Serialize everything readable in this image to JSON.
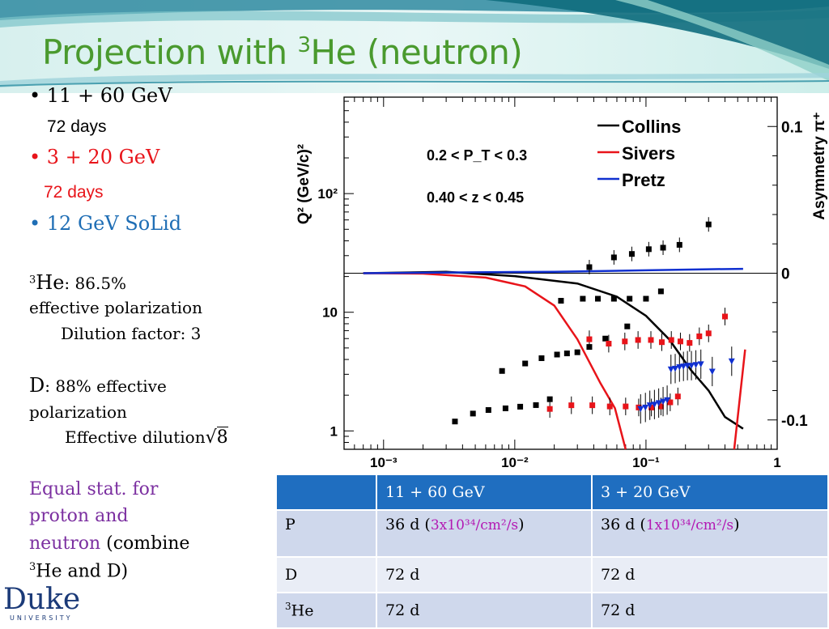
{
  "title": {
    "main": "Projection with ",
    "sup": "3",
    "rest": "He (neutron)"
  },
  "left": {
    "b1": "• 11 + 60 GeV",
    "b1_sub": "72 days",
    "b2": "• 3 + 20 GeV",
    "b2_sub": "72 days",
    "b3": "• 12 GeV SoLid",
    "he_sup": "3",
    "he_label": "He",
    "he_pct": ":   86.5%",
    "he_line2": "effective polarization",
    "he_line3": "Dilution factor: 3",
    "d_label": "D",
    "d_rest": ":   88% effective",
    "d_line2": "polarization",
    "d_line3": "Effective dilution",
    "d_sqrt": "8",
    "eq1": "Equal stat. for",
    "eq2": "proton and",
    "eq3a": "neutron",
    "eq3b": " (combine",
    "eq4_sup": "3",
    "eq4": "He and D)"
  },
  "table": {
    "headers": [
      "",
      "11 + 60 GeV",
      "3 + 20 GeV"
    ],
    "rows": [
      {
        "label": "P",
        "c1_a": "36 d (",
        "c1_lum": "3x10³⁴/cm²/s",
        "c1_b": ")",
        "c2_a": "36 d (",
        "c2_lum": "1x10³⁴/cm²/s",
        "c2_b": ")"
      },
      {
        "label": "D",
        "c1": "72 d",
        "c2": "72 d"
      },
      {
        "label_sup": "3",
        "label": "He",
        "c1": "72 d",
        "c2": "72 d"
      }
    ]
  },
  "logo": {
    "name": "Duke",
    "sub": "UNIVERSITY"
  },
  "chart_data": {
    "type": "scatter",
    "ylabel_left": "Q² (GeV/c)²",
    "ylabel_right": "Asymmetry π⁺",
    "x_scale": "log",
    "xlim": [
      0.0005,
      1
    ],
    "ylim_left": [
      0.7,
      650
    ],
    "y_scale_left": "log",
    "ylim_right": [
      -0.12,
      0.12
    ],
    "x_ticks": [
      "10⁻³",
      "10⁻²",
      "10⁻¹",
      "1"
    ],
    "y_ticks_left": [
      "1",
      "10",
      "10²"
    ],
    "y_ticks_right": [
      "0.1",
      "0",
      "-0.1"
    ],
    "annotations": [
      "0.2 < P_T < 0.3",
      "0.40 < z < 0.45"
    ],
    "legend": {
      "placement": "top-right",
      "entries": [
        {
          "name": "Collins",
          "color": "#000000"
        },
        {
          "name": "Sivers",
          "color": "#e8141a"
        },
        {
          "name": "Pretz",
          "color": "#1030d0"
        }
      ]
    },
    "series": [
      {
        "name": "Q² (11 + 60 GeV)",
        "marker": "square",
        "color": "#000000",
        "axis": "left",
        "points": [
          [
            0.0035,
            1.2
          ],
          [
            0.0048,
            1.4
          ],
          [
            0.0063,
            1.5
          ],
          [
            0.0085,
            1.55
          ],
          [
            0.011,
            1.6
          ],
          [
            0.0145,
            1.65
          ],
          [
            0.0185,
            1.85
          ],
          [
            0.008,
            3.2
          ],
          [
            0.012,
            3.7
          ],
          [
            0.016,
            4.1
          ],
          [
            0.021,
            4.4
          ],
          [
            0.025,
            4.5
          ],
          [
            0.03,
            4.6
          ],
          [
            0.037,
            5.1
          ],
          [
            0.049,
            6
          ],
          [
            0.072,
            7.6
          ],
          [
            0.0225,
            12.5
          ],
          [
            0.033,
            13
          ],
          [
            0.043,
            13
          ],
          [
            0.057,
            13
          ],
          [
            0.075,
            13
          ],
          [
            0.1,
            13
          ],
          [
            0.13,
            15
          ],
          [
            0.037,
            24
          ],
          [
            0.057,
            29
          ],
          [
            0.078,
            31
          ],
          [
            0.105,
            34
          ],
          [
            0.135,
            35
          ],
          [
            0.18,
            37
          ],
          [
            0.3,
            55
          ]
        ]
      },
      {
        "name": "Asymmetry (3 + 20 GeV)",
        "marker": "square",
        "color": "#e8141a",
        "axis": "right",
        "err": 0.006,
        "points": [
          [
            0.0185,
            -0.0925
          ],
          [
            0.027,
            -0.09
          ],
          [
            0.039,
            -0.09
          ],
          [
            0.053,
            -0.0908
          ],
          [
            0.07,
            -0.0908
          ],
          [
            0.088,
            -0.0915
          ],
          [
            0.11,
            -0.0915
          ],
          [
            0.13,
            -0.0908
          ],
          [
            0.153,
            -0.088
          ],
          [
            0.175,
            -0.084
          ],
          [
            0.037,
            -0.045
          ],
          [
            0.052,
            -0.048
          ],
          [
            0.069,
            -0.0465
          ],
          [
            0.087,
            -0.0455
          ],
          [
            0.109,
            -0.0455
          ],
          [
            0.132,
            -0.047
          ],
          [
            0.156,
            -0.0455
          ],
          [
            0.183,
            -0.0465
          ],
          [
            0.215,
            -0.0475
          ],
          [
            0.255,
            -0.043
          ],
          [
            0.3,
            -0.041
          ],
          [
            0.4,
            -0.0295
          ]
        ]
      },
      {
        "name": "Asymmetry (12 GeV SoLid)",
        "marker": "triangle-down",
        "color": "#1030d0",
        "axis": "right",
        "err": 0.01,
        "points": [
          [
            0.091,
            -0.0925
          ],
          [
            0.099,
            -0.0915
          ],
          [
            0.107,
            -0.09
          ],
          [
            0.116,
            -0.0895
          ],
          [
            0.125,
            -0.0885
          ],
          [
            0.135,
            -0.0875
          ],
          [
            0.145,
            -0.0865
          ],
          [
            0.155,
            -0.0655
          ],
          [
            0.167,
            -0.065
          ],
          [
            0.18,
            -0.064
          ],
          [
            0.193,
            -0.0635
          ],
          [
            0.207,
            -0.063
          ],
          [
            0.222,
            -0.063
          ],
          [
            0.24,
            -0.0625
          ],
          [
            0.262,
            -0.062
          ],
          [
            0.32,
            -0.067
          ],
          [
            0.45,
            -0.06
          ]
        ]
      },
      {
        "name": "Collins",
        "line": true,
        "color": "#000000",
        "axis": "right",
        "points": [
          [
            0.0007,
            0.0
          ],
          [
            0.003,
            0.001
          ],
          [
            0.01,
            -0.002
          ],
          [
            0.03,
            -0.007
          ],
          [
            0.06,
            -0.016
          ],
          [
            0.1,
            -0.029
          ],
          [
            0.15,
            -0.045
          ],
          [
            0.22,
            -0.066
          ],
          [
            0.3,
            -0.08
          ],
          [
            0.4,
            -0.098
          ],
          [
            0.55,
            -0.106
          ]
        ]
      },
      {
        "name": "Sivers",
        "line": true,
        "color": "#e8141a",
        "axis": "right",
        "points": [
          [
            0.0007,
            0.0
          ],
          [
            0.002,
            -0.0003
          ],
          [
            0.006,
            -0.003
          ],
          [
            0.012,
            -0.009
          ],
          [
            0.02,
            -0.022
          ],
          [
            0.03,
            -0.045
          ],
          [
            0.045,
            -0.075
          ],
          [
            0.058,
            -0.092
          ],
          [
            0.07,
            -0.12
          ]
        ]
      },
      {
        "name": "Sivers (high x)",
        "line": true,
        "color": "#e8141a",
        "axis": "right",
        "points": [
          [
            0.47,
            -0.12
          ],
          [
            0.57,
            -0.052
          ]
        ]
      },
      {
        "name": "Pretz",
        "line": true,
        "color": "#1030d0",
        "axis": "right",
        "points": [
          [
            0.0007,
            0.0
          ],
          [
            0.003,
            0.0005
          ],
          [
            0.02,
            0.001
          ],
          [
            0.1,
            0.002
          ],
          [
            0.3,
            0.0027
          ],
          [
            0.55,
            0.003
          ]
        ]
      }
    ]
  }
}
